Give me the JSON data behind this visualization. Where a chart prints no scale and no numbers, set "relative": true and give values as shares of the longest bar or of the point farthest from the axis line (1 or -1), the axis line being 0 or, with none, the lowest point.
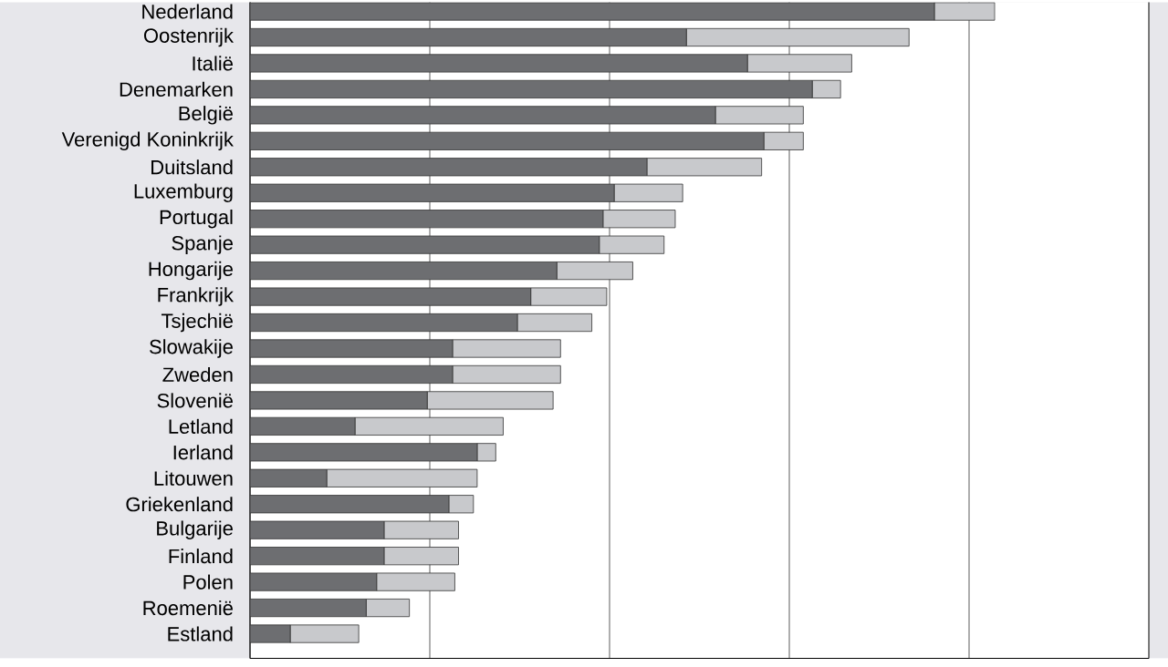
{
  "chart_data": {
    "type": "bar",
    "orientation": "horizontal",
    "stacked": true,
    "relative": true,
    "grid": "x",
    "categories": [
      "Nederland",
      "Oostenrijk",
      "Italië",
      "Denemarken",
      "België",
      "Verenigd Koninkrijk",
      "Duitsland",
      "Luxemburg",
      "Portugal",
      "Spanje",
      "Hongarije",
      "Frankrijk",
      "Tsjechië",
      "Slowakije",
      "Zweden",
      "Slovenië",
      "Letland",
      "Ierland",
      "Litouwen",
      "Griekenland",
      "Bulgarije",
      "Finland",
      "Polen",
      "Roemenië",
      "Estland"
    ],
    "series": [
      {
        "color": "#6d6e71",
        "values": [
          0.919,
          0.586,
          0.668,
          0.755,
          0.625,
          0.69,
          0.533,
          0.489,
          0.474,
          0.469,
          0.412,
          0.377,
          0.359,
          0.272,
          0.272,
          0.238,
          0.141,
          0.305,
          0.103,
          0.267,
          0.18,
          0.18,
          0.17,
          0.156,
          0.054
        ]
      },
      {
        "color": "#c8c9cc",
        "values": [
          0.081,
          0.299,
          0.14,
          0.038,
          0.118,
          0.053,
          0.154,
          0.092,
          0.097,
          0.087,
          0.102,
          0.102,
          0.1,
          0.145,
          0.145,
          0.169,
          0.199,
          0.025,
          0.202,
          0.033,
          0.1,
          0.1,
          0.105,
          0.058,
          0.092
        ]
      }
    ]
  }
}
